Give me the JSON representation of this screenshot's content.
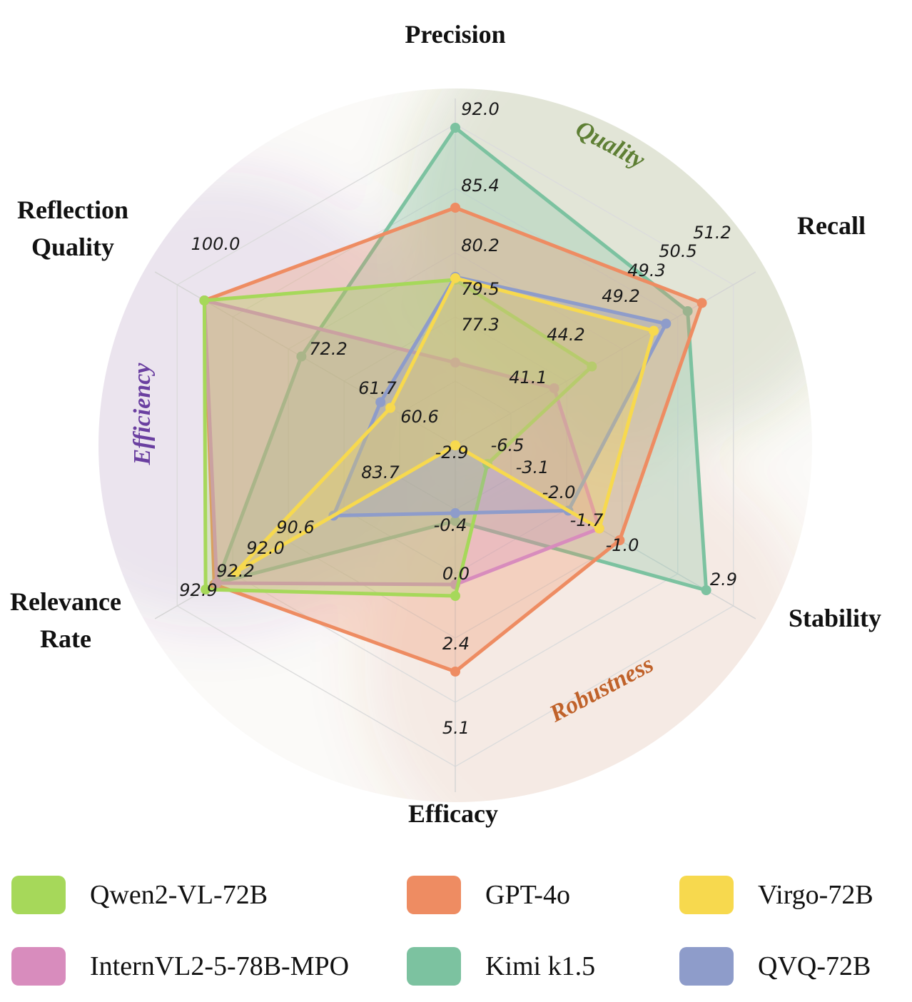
{
  "chart_data": {
    "type": "radar",
    "axes": [
      "Precision",
      "Recall",
      "Stability",
      "Efficacy",
      "Relevance Rate",
      "Reflection Quality"
    ],
    "axis_title_lines": [
      [
        "Precision"
      ],
      [
        "Recall"
      ],
      [
        "Stability"
      ],
      [
        "Efficacy"
      ],
      [
        "Relevance",
        "Rate"
      ],
      [
        "Reflection",
        "Quality"
      ]
    ],
    "groups": [
      {
        "name": "Quality",
        "color": "#5e7f34"
      },
      {
        "name": "Robustness",
        "color": "#c0622a"
      },
      {
        "name": "Efficiency",
        "color": "#6a3fa0"
      }
    ],
    "series": [
      {
        "name": "Qwen2-VL-72B",
        "color": "#a6d85a",
        "values": [
          79.5,
          44.2,
          -6.5,
          2.4,
          92.9,
          100.0
        ],
        "labels": [
          "79.5",
          "44.2",
          "-6.5",
          "2.4",
          "92.9",
          "100.0"
        ]
      },
      {
        "name": "GPT-4o",
        "color": "#ee8c62",
        "values": [
          85.4,
          51.2,
          -1.7,
          5.1,
          92.2,
          100.0
        ],
        "labels": [
          "85.4",
          "51.2",
          "-1.7",
          "5.1",
          "92.2",
          "100.0"
        ]
      },
      {
        "name": "Virgo-72B",
        "color": "#f7d94e",
        "values": [
          79.9,
          49.2,
          -2.0,
          -2.9,
          90.6,
          60.6
        ],
        "labels": [
          "",
          "49.2",
          "-2.0",
          "-2.9",
          "90.6",
          "60.6"
        ]
      },
      {
        "name": "InternVL2-5-78B-MPO",
        "color": "#d88cbd",
        "values": [
          77.3,
          41.1,
          -2.0,
          2.0,
          92.0,
          100.0
        ],
        "labels": [
          "77.3",
          "41.1",
          "",
          "",
          "",
          ""
        ]
      },
      {
        "name": "Kimi k1.5",
        "color": "#7cc2a0",
        "values": [
          92.0,
          50.5,
          2.9,
          0.0,
          92.0,
          72.2
        ],
        "labels": [
          "92.0",
          "50.5",
          "2.9",
          "0.0",
          "92.0",
          "72.2"
        ]
      },
      {
        "name": "QVQ-72B",
        "color": "#8e9cca",
        "values": [
          80.2,
          49.3,
          -3.1,
          -0.4,
          83.7,
          61.7
        ],
        "labels": [
          "80.2",
          "49.3",
          "-3.1",
          "-0.4",
          "83.7",
          "61.7"
        ]
      }
    ],
    "extra_labels": [
      {
        "axis": "Stability",
        "text": "-1.0"
      }
    ],
    "legend": {
      "placement": "bottom",
      "columns": 3
    }
  }
}
